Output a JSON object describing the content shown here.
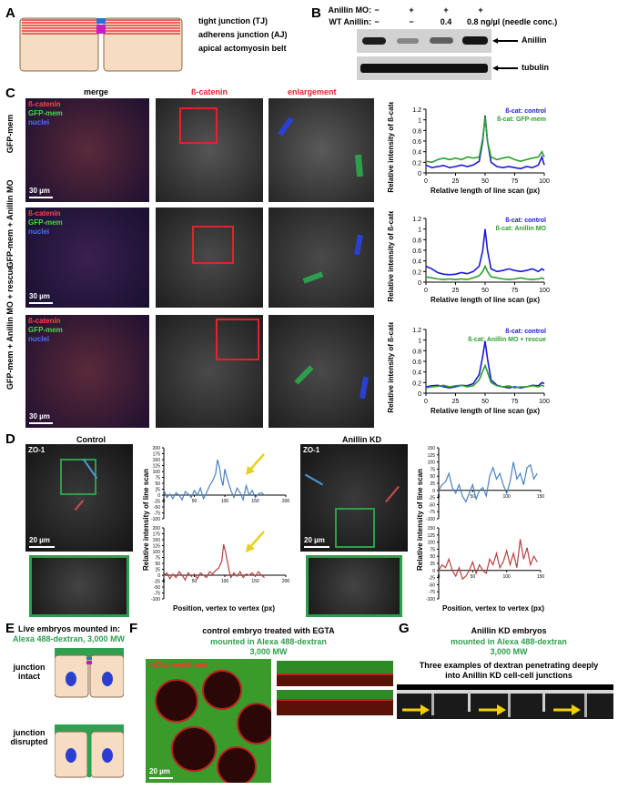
{
  "panels": {
    "A": "A",
    "B": "B",
    "C": "C",
    "D": "D",
    "E": "E",
    "F": "F",
    "G": "G"
  },
  "panelA": {
    "legend": [
      {
        "text": "tight junction (TJ)",
        "color": "#2a6fd6"
      },
      {
        "text": "adherens junction (AJ)",
        "color": "#c020c0"
      },
      {
        "text": "apical actomyosin belt",
        "color": "#e0232d"
      }
    ]
  },
  "panelB": {
    "row1_label": "Anillin MO:",
    "row2_label": "WT Anillin:",
    "row1_values": [
      "−",
      "+",
      "+",
      "+"
    ],
    "row2_values": [
      "−",
      "−",
      "0.4",
      "0.8 ng/µl (needle conc.)"
    ],
    "band1": "Anillin",
    "band2": "tubulin",
    "band_intensity": [
      0.9,
      0.35,
      0.55,
      0.95
    ]
  },
  "panelC": {
    "col_headers": [
      "merge",
      "ß-catenin",
      "enlargement"
    ],
    "rows": [
      {
        "label": "GFP-mem",
        "merge_labels": [
          "ß-catenin",
          "GFP-mem",
          "nuclei"
        ],
        "scale": "30 µm"
      },
      {
        "label": "GFP-mem + Anillin MO",
        "merge_labels": [
          "ß-catenin",
          "GFP-mem",
          "nuclei"
        ],
        "scale": "30 µm"
      },
      {
        "label": "GFP-mem + Anillin MO + rescue",
        "merge_labels": [
          "ß-catenin",
          "GFP-mem",
          "nuclei"
        ],
        "scale": "30 µm"
      }
    ],
    "legend_colors": [
      "#e0232d",
      "#2e9e4c",
      "#2a5fd6"
    ]
  },
  "chart_data": [
    {
      "type": "line",
      "ylabel": "Relative intensity of ß-catenin",
      "xlabel": "Relative length of line scan (px)",
      "xlim": [
        0,
        100
      ],
      "ylim": [
        0,
        1.2
      ],
      "xticks": [
        0,
        25,
        50,
        75,
        100
      ],
      "yticks": [
        0,
        0.2,
        0.4,
        0.6,
        0.8,
        1.0,
        1.2
      ],
      "ytick_labels": [
        "0",
        "0.2",
        "0.4",
        "0.6",
        "0.8",
        "1",
        "1.2"
      ],
      "series": [
        {
          "name": "ß-cat: control",
          "color": "#1a1ad6",
          "x": [
            0,
            5,
            10,
            15,
            20,
            25,
            30,
            35,
            40,
            45,
            48,
            50,
            52,
            55,
            60,
            65,
            70,
            75,
            80,
            85,
            90,
            95,
            98,
            100
          ],
          "y": [
            0.15,
            0.1,
            0.12,
            0.14,
            0.1,
            0.12,
            0.15,
            0.12,
            0.15,
            0.22,
            0.6,
            1.08,
            0.6,
            0.2,
            0.12,
            0.1,
            0.12,
            0.1,
            0.08,
            0.12,
            0.1,
            0.15,
            0.3,
            0.15
          ]
        },
        {
          "name": "ß-cat: GFP-mem",
          "color": "#2e9e2e",
          "x": [
            0,
            5,
            10,
            15,
            20,
            25,
            30,
            35,
            40,
            45,
            48,
            50,
            52,
            55,
            60,
            65,
            70,
            75,
            80,
            85,
            90,
            95,
            98,
            100
          ],
          "y": [
            0.22,
            0.2,
            0.25,
            0.28,
            0.25,
            0.28,
            0.25,
            0.3,
            0.28,
            0.3,
            0.65,
            1.05,
            0.6,
            0.3,
            0.25,
            0.28,
            0.3,
            0.25,
            0.22,
            0.25,
            0.28,
            0.3,
            0.4,
            0.3
          ]
        }
      ]
    },
    {
      "type": "line",
      "ylabel": "Relative intensity of ß-catenin",
      "xlabel": "Relative length of line scan (px)",
      "xlim": [
        0,
        100
      ],
      "ylim": [
        0,
        1.2
      ],
      "xticks": [
        0,
        25,
        50,
        75,
        100
      ],
      "yticks": [
        0,
        0.2,
        0.4,
        0.6,
        0.8,
        1.0,
        1.2
      ],
      "ytick_labels": [
        "0",
        "0.2",
        "0.4",
        "0.6",
        "0.8",
        "1",
        "1.2"
      ],
      "series": [
        {
          "name": "ß-cat: control",
          "color": "#1a1ad6",
          "x": [
            0,
            5,
            10,
            15,
            20,
            25,
            30,
            35,
            40,
            45,
            48,
            50,
            52,
            55,
            60,
            65,
            70,
            75,
            80,
            85,
            90,
            95,
            98,
            100
          ],
          "y": [
            0.3,
            0.25,
            0.18,
            0.15,
            0.14,
            0.15,
            0.18,
            0.16,
            0.2,
            0.3,
            0.6,
            1.0,
            0.6,
            0.25,
            0.2,
            0.22,
            0.25,
            0.22,
            0.2,
            0.22,
            0.25,
            0.2,
            0.25,
            0.22
          ]
        },
        {
          "name": "ß-cat: Anillin MO",
          "color": "#2e9e2e",
          "x": [
            0,
            5,
            10,
            15,
            20,
            25,
            30,
            35,
            40,
            45,
            48,
            50,
            52,
            55,
            60,
            65,
            70,
            75,
            80,
            85,
            90,
            95,
            98,
            100
          ],
          "y": [
            0.1,
            0.08,
            0.06,
            0.05,
            0.06,
            0.05,
            0.06,
            0.05,
            0.08,
            0.12,
            0.2,
            0.3,
            0.2,
            0.1,
            0.08,
            0.06,
            0.05,
            0.06,
            0.08,
            0.06,
            0.05,
            0.06,
            0.08,
            0.06
          ]
        }
      ]
    },
    {
      "type": "line",
      "ylabel": "Relative intensity of ß-catenin",
      "xlabel": "Relative length of line scan (px)",
      "xlim": [
        0,
        100
      ],
      "ylim": [
        0,
        1.2
      ],
      "xticks": [
        0,
        25,
        50,
        75,
        100
      ],
      "yticks": [
        0,
        0.2,
        0.4,
        0.6,
        0.8,
        1.0,
        1.2
      ],
      "ytick_labels": [
        "0",
        "0.2",
        "0.4",
        "0.6",
        "0.8",
        "1",
        "1.2"
      ],
      "series": [
        {
          "name": "ß-cat: control",
          "color": "#1a1ad6",
          "x": [
            0,
            5,
            10,
            15,
            20,
            25,
            30,
            35,
            40,
            45,
            48,
            50,
            52,
            55,
            60,
            65,
            70,
            75,
            80,
            85,
            90,
            95,
            98,
            100
          ],
          "y": [
            0.12,
            0.14,
            0.15,
            0.12,
            0.1,
            0.12,
            0.15,
            0.14,
            0.18,
            0.35,
            0.7,
            0.98,
            0.65,
            0.25,
            0.15,
            0.12,
            0.1,
            0.12,
            0.1,
            0.12,
            0.15,
            0.14,
            0.2,
            0.18
          ]
        },
        {
          "name": "ß-cat: Anillin MO + rescue",
          "color": "#2e9e2e",
          "x": [
            0,
            5,
            10,
            15,
            20,
            25,
            30,
            35,
            40,
            45,
            48,
            50,
            52,
            55,
            60,
            65,
            70,
            75,
            80,
            85,
            90,
            95,
            98,
            100
          ],
          "y": [
            0.1,
            0.12,
            0.13,
            0.15,
            0.12,
            0.14,
            0.15,
            0.12,
            0.14,
            0.25,
            0.42,
            0.52,
            0.4,
            0.2,
            0.14,
            0.12,
            0.14,
            0.1,
            0.12,
            0.12,
            0.14,
            0.12,
            0.15,
            0.13
          ]
        }
      ]
    },
    {
      "type": "line",
      "ylabel": "Relative intensity of line scan",
      "xlim": [
        0,
        200
      ],
      "ylim": [
        -100,
        200
      ],
      "xticks": [
        0,
        50,
        100,
        150,
        200
      ],
      "yticks": [
        -100,
        -75,
        -50,
        -25,
        0,
        25,
        50,
        75,
        100,
        125,
        150,
        175,
        200
      ],
      "series": [
        {
          "color": "#4a82c0",
          "x": [
            0,
            5,
            10,
            15,
            20,
            25,
            30,
            35,
            40,
            45,
            50,
            55,
            60,
            65,
            70,
            75,
            80,
            85,
            88,
            91,
            94,
            97,
            100,
            105,
            110,
            115,
            120,
            125,
            130,
            135,
            140,
            145,
            150,
            155,
            160,
            165
          ],
          "y": [
            20,
            -10,
            5,
            -15,
            10,
            0,
            -20,
            15,
            5,
            -10,
            20,
            0,
            30,
            -15,
            10,
            40,
            60,
            90,
            150,
            120,
            70,
            40,
            110,
            60,
            20,
            -10,
            30,
            10,
            -20,
            40,
            0,
            20,
            -10,
            5,
            10,
            0
          ]
        }
      ]
    },
    {
      "type": "line",
      "xlim": [
        0,
        200
      ],
      "ylim": [
        -100,
        200
      ],
      "xticks": [
        0,
        50,
        100,
        150,
        200
      ],
      "yticks": [
        -100,
        -75,
        -50,
        -25,
        0,
        25,
        50,
        75,
        100,
        125,
        150,
        175,
        200
      ],
      "series": [
        {
          "color": "#b84040",
          "x": [
            0,
            5,
            10,
            15,
            20,
            25,
            30,
            35,
            40,
            45,
            50,
            55,
            60,
            65,
            70,
            75,
            80,
            85,
            90,
            95,
            98,
            101,
            104,
            107,
            110,
            115,
            120,
            125,
            130,
            135,
            140,
            145,
            150,
            155,
            160,
            165
          ],
          "y": [
            0,
            10,
            -15,
            5,
            -10,
            15,
            0,
            -20,
            10,
            -5,
            5,
            -15,
            10,
            0,
            -10,
            15,
            5,
            20,
            30,
            60,
            130,
            100,
            60,
            20,
            -10,
            10,
            -5,
            15,
            -10,
            5,
            0,
            10,
            -5,
            15,
            0,
            -10
          ]
        }
      ]
    },
    {
      "type": "line",
      "xlim": [
        0,
        150
      ],
      "ylim": [
        -100,
        150
      ],
      "xticks": [
        0,
        50,
        100,
        150
      ],
      "yticks": [
        -100,
        -75,
        -50,
        -25,
        0,
        25,
        50,
        75,
        100,
        125,
        150
      ],
      "series": [
        {
          "color": "#4a82c0",
          "x": [
            0,
            5,
            10,
            15,
            20,
            25,
            30,
            35,
            40,
            45,
            50,
            55,
            60,
            65,
            70,
            75,
            80,
            85,
            90,
            95,
            100,
            105,
            110,
            115,
            120,
            125,
            130,
            135,
            140,
            145
          ],
          "y": [
            0,
            20,
            30,
            60,
            10,
            -10,
            20,
            -20,
            -40,
            -10,
            20,
            -30,
            0,
            10,
            -20,
            50,
            80,
            40,
            60,
            20,
            -10,
            30,
            100,
            40,
            60,
            20,
            80,
            90,
            40,
            60
          ]
        }
      ]
    },
    {
      "type": "line",
      "xlim": [
        0,
        150
      ],
      "ylim": [
        -100,
        150
      ],
      "xticks": [
        0,
        50,
        100,
        150
      ],
      "yticks": [
        -100,
        -75,
        -50,
        -25,
        0,
        25,
        50,
        75,
        100,
        125,
        150
      ],
      "series": [
        {
          "color": "#b84040",
          "x": [
            0,
            5,
            10,
            15,
            20,
            25,
            30,
            35,
            40,
            45,
            50,
            55,
            60,
            65,
            70,
            75,
            80,
            85,
            90,
            95,
            100,
            105,
            110,
            115,
            120,
            125,
            130,
            135,
            140,
            145
          ],
          "y": [
            0,
            20,
            10,
            40,
            0,
            -20,
            10,
            -30,
            -20,
            0,
            30,
            -10,
            20,
            0,
            -10,
            40,
            20,
            60,
            10,
            30,
            70,
            20,
            60,
            10,
            110,
            40,
            80,
            20,
            50,
            30
          ]
        }
      ]
    }
  ],
  "panelD": {
    "control_title": "Control",
    "kd_title": "Anillin KD",
    "zo1": "ZO-1",
    "scale": "20 µm",
    "ylabel": "Relative intensity of line scan",
    "xlabel": "Position, vertex to vertex (px)"
  },
  "panelE": {
    "title1": "Live embryos mounted in:",
    "title2": "Alexa 488-dextran, 3,000 MW",
    "label1": "junction intact",
    "label2": "junction disrupted"
  },
  "panelF": {
    "title1": "control embryo treated with EGTA",
    "title2": "mounted in Alexa 488-dextran",
    "title3": "3,000 MW",
    "channel": "mChe-membrane",
    "scale": "20 µm"
  },
  "panelG": {
    "title1": "Anillin KD embryos",
    "title2": "mounted in Alexa 488-dextran",
    "title3": "3,000 MW",
    "caption": "Three examples of dextran penetrating deeply into Anillin KD cell-cell junctions"
  }
}
